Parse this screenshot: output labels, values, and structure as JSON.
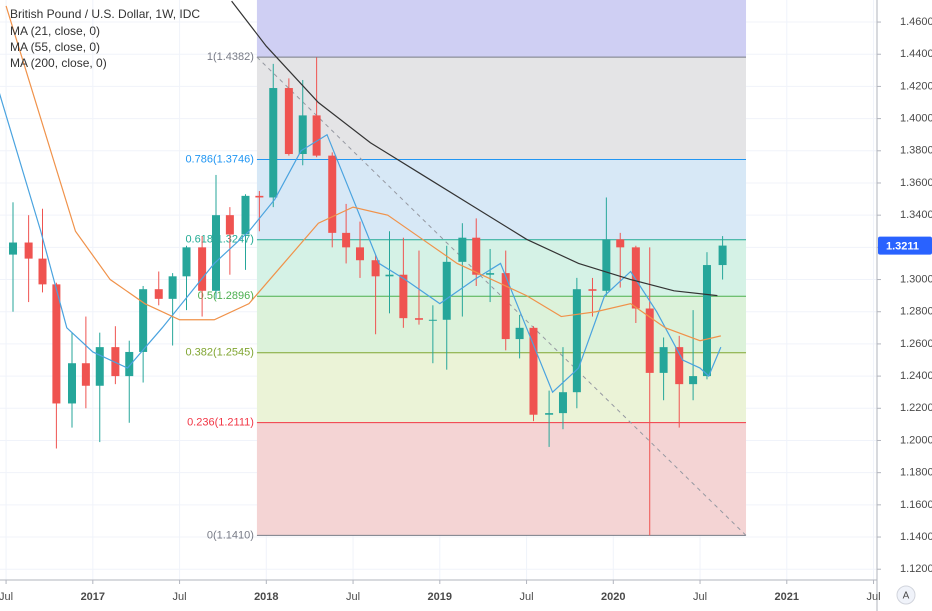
{
  "chart_data": {
    "type": "candlestick",
    "title": "British Pound / U.S. Dollar, 1W, IDC",
    "up_color": "#26a69a",
    "down_color": "#ef5350",
    "candles": {
      "x": [
        2016.54,
        2016.63,
        2016.71,
        2016.79,
        2016.88,
        2016.96,
        2017.04,
        2017.13,
        2017.21,
        2017.29,
        2017.38,
        2017.46,
        2017.54,
        2017.63,
        2017.71,
        2017.79,
        2017.88,
        2017.96,
        2018.04,
        2018.13,
        2018.21,
        2018.29,
        2018.38,
        2018.46,
        2018.54,
        2018.63,
        2018.71,
        2018.79,
        2018.88,
        2018.96,
        2019.04,
        2019.13,
        2019.21,
        2019.29,
        2019.38,
        2019.46,
        2019.54,
        2019.63,
        2019.71,
        2019.79,
        2019.88,
        2019.96,
        2020.04,
        2020.13,
        2020.21,
        2020.29,
        2020.38,
        2020.46,
        2020.54,
        2020.63
      ],
      "open": [
        1.3155,
        1.323,
        1.313,
        1.297,
        1.223,
        1.248,
        1.234,
        1.258,
        1.24,
        1.255,
        1.294,
        1.288,
        1.302,
        1.32,
        1.293,
        1.34,
        1.328,
        1.352,
        1.351,
        1.419,
        1.378,
        1.402,
        1.377,
        1.329,
        1.32,
        1.312,
        1.302,
        1.303,
        1.276,
        1.275,
        1.275,
        1.311,
        1.326,
        1.303,
        1.304,
        1.263,
        1.27,
        1.216,
        1.217,
        1.23,
        1.294,
        1.293,
        1.325,
        1.32,
        1.282,
        1.242,
        1.258,
        1.235,
        1.24,
        1.309
      ],
      "high": [
        1.348,
        1.34,
        1.344,
        1.298,
        1.267,
        1.277,
        1.267,
        1.271,
        1.262,
        1.296,
        1.305,
        1.304,
        1.321,
        1.327,
        1.365,
        1.345,
        1.353,
        1.355,
        1.434,
        1.425,
        1.424,
        1.438,
        1.379,
        1.347,
        1.336,
        1.315,
        1.33,
        1.326,
        1.318,
        1.284,
        1.321,
        1.335,
        1.338,
        1.319,
        1.318,
        1.278,
        1.271,
        1.231,
        1.258,
        1.301,
        1.301,
        1.351,
        1.329,
        1.321,
        1.32,
        1.264,
        1.265,
        1.281,
        1.317,
        1.327
      ],
      "low": [
        1.28,
        1.286,
        1.292,
        1.195,
        1.208,
        1.22,
        1.199,
        1.235,
        1.211,
        1.236,
        1.284,
        1.259,
        1.281,
        1.277,
        1.288,
        1.303,
        1.306,
        1.33,
        1.345,
        1.377,
        1.371,
        1.376,
        1.32,
        1.31,
        1.301,
        1.266,
        1.279,
        1.27,
        1.272,
        1.248,
        1.244,
        1.277,
        1.296,
        1.286,
        1.256,
        1.251,
        1.212,
        1.196,
        1.207,
        1.22,
        1.277,
        1.29,
        1.295,
        1.273,
        1.141,
        1.225,
        1.208,
        1.225,
        1.238,
        1.3
      ],
      "close": [
        1.323,
        1.313,
        1.297,
        1.223,
        1.248,
        1.234,
        1.258,
        1.24,
        1.255,
        1.294,
        1.288,
        1.302,
        1.32,
        1.293,
        1.34,
        1.328,
        1.352,
        1.351,
        1.419,
        1.378,
        1.402,
        1.377,
        1.329,
        1.32,
        1.312,
        1.302,
        1.303,
        1.276,
        1.275,
        1.275,
        1.311,
        1.326,
        1.303,
        1.304,
        1.263,
        1.27,
        1.216,
        1.217,
        1.23,
        1.294,
        1.293,
        1.325,
        1.32,
        1.282,
        1.242,
        1.258,
        1.235,
        1.24,
        1.309,
        1.3211
      ]
    },
    "series": [
      {
        "name": "MA (21, close, 0)",
        "color": "#4aa3df",
        "x": [
          2016.45,
          2016.7,
          2016.85,
          2017.0,
          2017.2,
          2017.4,
          2017.55,
          2017.7,
          2017.9,
          2018.05,
          2018.2,
          2018.35,
          2018.5,
          2018.65,
          2018.8,
          2019.0,
          2019.2,
          2019.35,
          2019.5,
          2019.65,
          2019.8,
          2019.95,
          2020.1,
          2020.25,
          2020.4,
          2020.5,
          2020.55,
          2020.62
        ],
        "values": [
          1.42,
          1.33,
          1.27,
          1.255,
          1.245,
          1.27,
          1.29,
          1.31,
          1.33,
          1.35,
          1.38,
          1.39,
          1.35,
          1.31,
          1.3,
          1.285,
          1.3,
          1.31,
          1.27,
          1.23,
          1.245,
          1.29,
          1.305,
          1.28,
          1.25,
          1.245,
          1.24,
          1.258
        ]
      },
      {
        "name": "MA (55, close, 0)",
        "color": "#f0924a",
        "x": [
          2016.5,
          2016.7,
          2016.9,
          2017.1,
          2017.3,
          2017.5,
          2017.7,
          2017.9,
          2018.1,
          2018.3,
          2018.5,
          2018.7,
          2018.9,
          2019.1,
          2019.3,
          2019.5,
          2019.7,
          2019.9,
          2020.1,
          2020.3,
          2020.5,
          2020.62
        ],
        "values": [
          1.47,
          1.4,
          1.33,
          1.3,
          1.285,
          1.275,
          1.275,
          1.285,
          1.31,
          1.335,
          1.345,
          1.34,
          1.325,
          1.31,
          1.3,
          1.29,
          1.277,
          1.28,
          1.285,
          1.27,
          1.262,
          1.265
        ]
      },
      {
        "name": "MA (200, close, 0)",
        "color": "#333333",
        "x": [
          2017.8,
          2018.0,
          2018.3,
          2018.6,
          2018.9,
          2019.2,
          2019.5,
          2019.8,
          2020.1,
          2020.35,
          2020.6
        ],
        "values": [
          1.473,
          1.445,
          1.41,
          1.385,
          1.365,
          1.345,
          1.325,
          1.31,
          1.3,
          1.293,
          1.29
        ]
      }
    ],
    "fib_x": [
      2017.946,
      2020.765
    ],
    "fib_top_fill": "#cfcff3",
    "fib_levels": [
      {
        "label": "1(1.4382)",
        "value": 1.4382,
        "color": "#787b86",
        "fill": "#e4e4e6"
      },
      {
        "label": "0.786(1.3746)",
        "value": 1.3746,
        "color": "#2196f3",
        "fill": "#d7e8f6"
      },
      {
        "label": "0.618(1.3247)",
        "value": 1.3247,
        "color": "#22ab94",
        "fill": "#d5f2e6"
      },
      {
        "label": "0.5(1.2896)",
        "value": 1.2896,
        "color": "#4caf50",
        "fill": "#dcf2da"
      },
      {
        "label": "0.382(1.2545)",
        "value": 1.2545,
        "color": "#81a633",
        "fill": "#ebf3d7"
      },
      {
        "label": "0.236(1.2111)",
        "value": 1.2111,
        "color": "#f23645",
        "fill": "#f4d4d4"
      },
      {
        "label": "0(1.1410)",
        "value": 1.141,
        "color": "#787b86"
      }
    ],
    "last_price": 1.3211,
    "last_price_color": "#2962ff",
    "xlim": [
      2016.465,
      2021.52
    ],
    "ylim": [
      1.1133,
      1.4737
    ],
    "xticks": [
      {
        "value": 2016.5,
        "label": "Jul"
      },
      2017,
      {
        "value": 2017.5,
        "label": "Jul"
      },
      2018,
      {
        "value": 2018.5,
        "label": "Jul"
      },
      2019,
      {
        "value": 2019.5,
        "label": "Jul"
      },
      2020,
      {
        "value": 2020.5,
        "label": "Jul"
      },
      2021,
      {
        "value": 2021.5,
        "label": "Jul"
      }
    ],
    "yticks": [
      {
        "value": 1.12,
        "label": "1.1200"
      },
      {
        "value": 1.14,
        "label": "1.1400"
      },
      {
        "value": 1.16,
        "label": "1.1600"
      },
      {
        "value": 1.18,
        "label": "1.1800"
      },
      {
        "value": 1.2,
        "label": "1.2000"
      },
      {
        "value": 1.22,
        "label": "1.2200"
      },
      {
        "value": 1.24,
        "label": "1.2400"
      },
      {
        "value": 1.26,
        "label": "1.2600"
      },
      {
        "value": 1.28,
        "label": "1.2800"
      },
      {
        "value": 1.3,
        "label": "1.3000"
      },
      {
        "value": 1.32,
        "label": "1.3200"
      },
      {
        "value": 1.34,
        "label": "1.3400"
      },
      {
        "value": 1.36,
        "label": "1.3600"
      },
      {
        "value": 1.38,
        "label": "1.3800"
      },
      {
        "value": 1.4,
        "label": "1.4000"
      },
      {
        "value": 1.42,
        "label": "1.4200"
      },
      {
        "value": 1.44,
        "label": "1.4400"
      },
      {
        "value": 1.46,
        "label": "1.4600"
      }
    ],
    "grid": true
  }
}
